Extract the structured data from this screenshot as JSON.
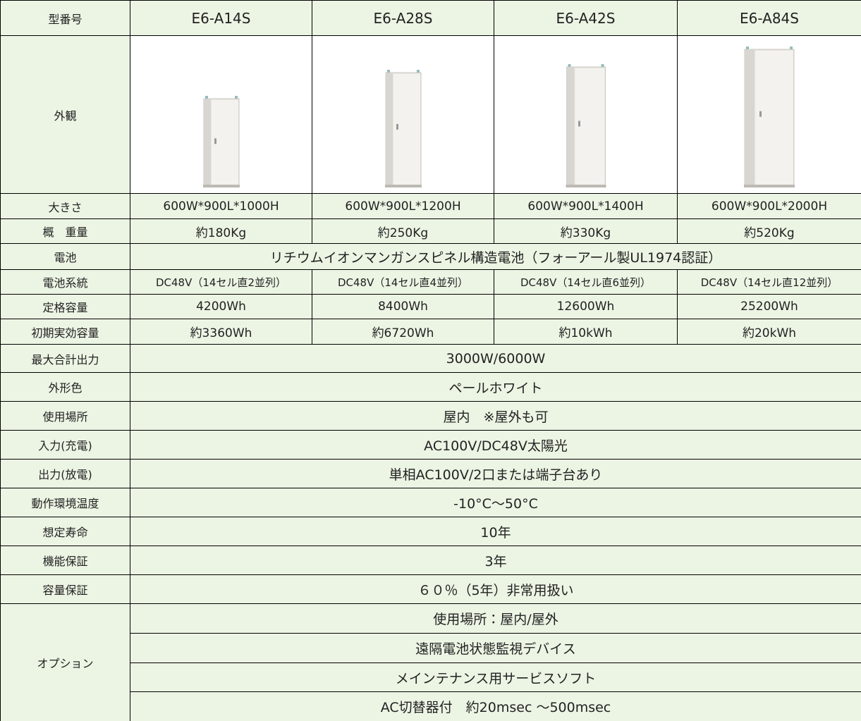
{
  "table": {
    "header": [
      "型番号",
      "E6-A14S",
      "E6-A28S",
      "E6-A42S",
      "E6-A84S"
    ],
    "appearance_label": "外観",
    "rows": [
      [
        "大きさ",
        "600W*900L*1000H",
        "600W*900L*1200H",
        "600W*900L*1400H",
        "600W*900L*2000H"
      ],
      [
        "概　重量",
        "約180Kg",
        "約250Kg",
        "約330Kg",
        "約520Kg"
      ],
      [
        "電池",
        "リチウムイオンマンガンスピネル構造電池（フォーアール製UL1974認証）"
      ],
      [
        "電池系統",
        "DC48V（14セル直2並列）",
        "DC48V（14セル直4並列）",
        "DC48V（14セル直6並列）",
        "DC48V（14セル直12並列）"
      ],
      [
        "定格容量",
        "4200Wh",
        "8400Wh",
        "12600Wh",
        "25200Wh"
      ],
      [
        "初期実効容量",
        "約3360Wh",
        "約6720Wh",
        "約10kWh",
        "約20kWh"
      ],
      [
        "最大合計出力",
        "3000W/6000W"
      ],
      [
        "外形色",
        "ペールホワイト"
      ],
      [
        "使用場所",
        "屋内　※屋外も可"
      ],
      [
        "入力(充電)",
        "AC100V/DC48V太陽光"
      ],
      [
        "出力(放電)",
        "単相AC100V/2口または端子台あり"
      ],
      [
        "動作環境温度",
        "-10°C～50°C"
      ],
      [
        "想定寿命",
        "10年"
      ],
      [
        "機能保証",
        "3年"
      ],
      [
        "容量保証",
        "６０％（5年）非常用扱い"
      ]
    ],
    "options_label": "オプション",
    "options": [
      "使用場所：屋内/屋外",
      "遠隔電池状態監視デバイス",
      "メインテナンス用サービスソフト",
      "AC切替器付　約20msec ～500msec"
    ]
  }
}
